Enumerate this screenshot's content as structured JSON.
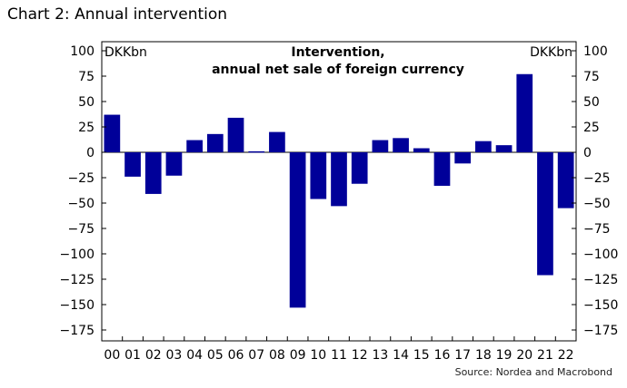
{
  "page": {
    "title": "Chart 2: Annual intervention",
    "source": "Source: Nordea and Macrobond"
  },
  "chart_data": {
    "type": "bar",
    "title_line1": "Intervention,",
    "title_line2": "annual net sale of foreign currency",
    "unit_left": "DKKbn",
    "unit_right": "DKKbn",
    "categories": [
      "00",
      "01",
      "02",
      "03",
      "04",
      "05",
      "06",
      "07",
      "08",
      "09",
      "10",
      "11",
      "12",
      "13",
      "14",
      "15",
      "16",
      "17",
      "18",
      "19",
      "20",
      "21",
      "22"
    ],
    "values": [
      37,
      -24,
      -41,
      -23,
      12,
      18,
      34,
      1,
      20,
      -153,
      -46,
      -53,
      -31,
      12,
      14,
      4,
      -33,
      -11,
      11,
      7,
      77,
      -121,
      -55
    ],
    "yticks": [
      100,
      75,
      50,
      25,
      0,
      -25,
      -50,
      -75,
      -100,
      -125,
      -150,
      -175
    ],
    "ylim": [
      -175,
      100
    ],
    "bar_color": "#000099",
    "grid": false
  }
}
